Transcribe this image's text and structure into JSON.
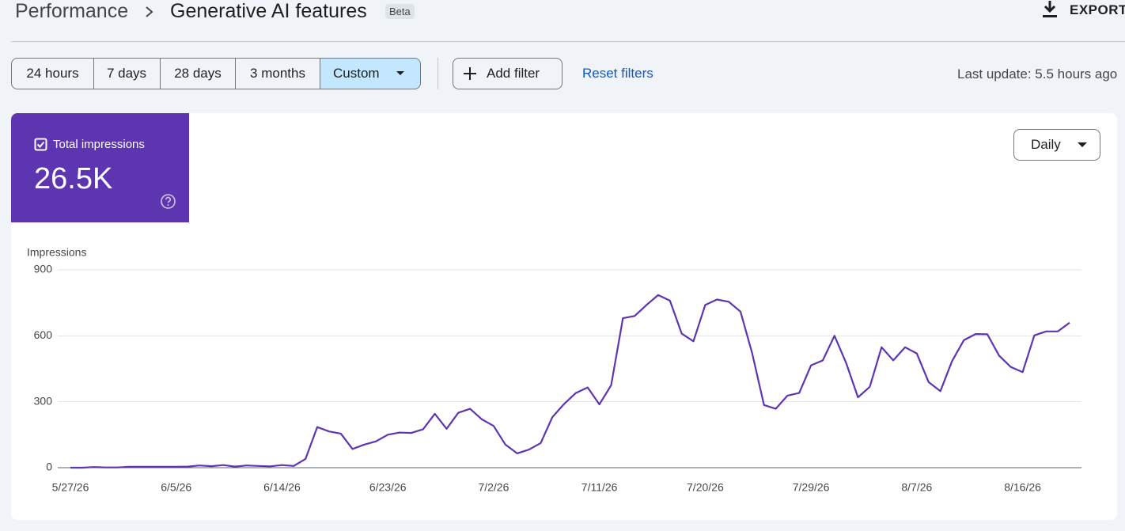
{
  "header": {
    "breadcrumb_root": "Performance",
    "title": "Generative AI features",
    "badge": "Beta",
    "export": "EXPORT"
  },
  "filters": {
    "ranges": [
      "24 hours",
      "7 days",
      "28 days",
      "3 months",
      "Custom"
    ],
    "add_filter": "Add filter",
    "reset": "Reset filters",
    "last_update": "Last update: 5.5 hours ago"
  },
  "metric": {
    "label": "Total impressions",
    "value": "26.5K"
  },
  "granularity": "Daily",
  "chart_data": {
    "type": "line",
    "y_label": "Impressions",
    "color": "#5e35b1",
    "grid": true,
    "categories": [
      "5/27/26",
      null,
      null,
      null,
      null,
      null,
      null,
      null,
      null,
      "6/5/26",
      null,
      null,
      null,
      null,
      null,
      null,
      null,
      null,
      "6/14/26",
      null,
      null,
      null,
      null,
      null,
      null,
      null,
      null,
      "6/23/26",
      null,
      null,
      null,
      null,
      null,
      null,
      null,
      null,
      "7/2/26",
      null,
      null,
      null,
      null,
      null,
      null,
      null,
      null,
      "7/11/26",
      null,
      null,
      null,
      null,
      null,
      null,
      null,
      null,
      "7/20/26",
      null,
      null,
      null,
      null,
      null,
      null,
      null,
      null,
      "7/29/26",
      null,
      null,
      null,
      null,
      null,
      null,
      null,
      null,
      "8/7/26",
      null,
      null,
      null,
      null,
      null,
      null,
      null,
      null,
      "8/16/26",
      null,
      null,
      null,
      null
    ],
    "series": [
      {
        "name": "Impressions",
        "color": "#5e35b1",
        "values": [
          0,
          0,
          3,
          1,
          1,
          4,
          4,
          4,
          4,
          4,
          5,
          10,
          7,
          12,
          5,
          10,
          8,
          6,
          12,
          8,
          40,
          185,
          165,
          155,
          85,
          105,
          120,
          150,
          160,
          158,
          175,
          245,
          177,
          250,
          268,
          220,
          190,
          105,
          65,
          82,
          112,
          230,
          290,
          340,
          365,
          288,
          375,
          680,
          690,
          740,
          785,
          760,
          610,
          575,
          740,
          765,
          755,
          710,
          520,
          285,
          268,
          328,
          340,
          465,
          488,
          600,
          475,
          320,
          368,
          548,
          488,
          548,
          520,
          390,
          348,
          485,
          580,
          608,
          607,
          510,
          458,
          435,
          602,
          620,
          620,
          660
        ]
      }
    ],
    "ylim": [
      0,
      900
    ],
    "yticks": [
      0,
      300,
      600,
      900
    ]
  }
}
